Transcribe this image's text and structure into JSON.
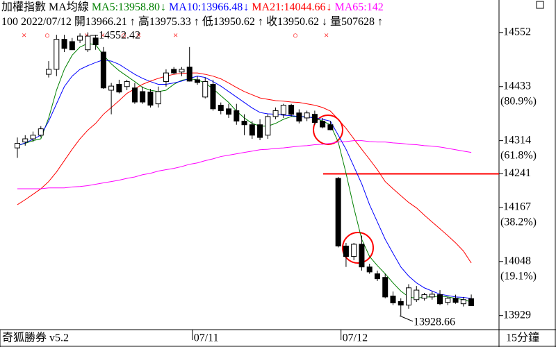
{
  "chart_data": {
    "type": "candlestick",
    "title": "加權指數",
    "indicator": "MA均線",
    "info": [
      "100",
      "2022/07/12",
      "開13966.21",
      "↑",
      "高13975.33",
      "↑",
      "低13950.62",
      "↑",
      "收13950.62",
      "↓",
      "量507628",
      "↑"
    ],
    "signals": [
      "×",
      "○",
      "×",
      "×",
      "○",
      "×",
      "×",
      "○",
      "×"
    ],
    "categories": [
      null,
      null,
      null,
      null,
      null,
      null,
      null,
      null,
      null,
      null,
      null,
      null,
      null,
      null,
      null,
      null,
      null,
      null,
      null,
      null,
      null,
      null,
      "07/11",
      null,
      null,
      null,
      null,
      null,
      null,
      null,
      null,
      null,
      null,
      null,
      null,
      null,
      null,
      null,
      null,
      null,
      null,
      "07/12",
      null,
      null,
      null,
      null,
      null,
      null,
      null,
      null,
      null,
      null,
      null,
      null,
      null,
      null,
      null,
      null,
      null
    ],
    "open": [
      14298,
      14311,
      14318,
      14326,
      14460,
      14471,
      14537,
      14532,
      14535,
      14514,
      14540,
      14509,
      14425,
      14438,
      14433,
      14430,
      14422,
      14421,
      14395,
      14444,
      14471,
      14465,
      14476,
      14448,
      14410,
      14438,
      14392,
      14384,
      14380,
      14357,
      14349,
      14349,
      14326,
      14367,
      14372,
      14392,
      14375,
      14364,
      14372,
      14357,
      14349,
      14231,
      14082,
      14059,
      14086,
      14036,
      14021,
      14013,
      13972,
      13960,
      13952,
      13964,
      13967,
      13970,
      13975,
      13958,
      13967,
      13955,
      13966.21
    ],
    "high": [
      14321,
      14326,
      14334,
      14346,
      14489,
      14547,
      14547,
      14540,
      14550,
      14552.42,
      14547,
      14520,
      14441,
      14448,
      14448,
      14441,
      14433,
      14428,
      14433,
      14471,
      14476,
      14476,
      14520,
      14456,
      14453,
      14448,
      14398,
      14395,
      14395,
      14372,
      14357,
      14361,
      14372,
      14387,
      14395,
      14395,
      14383,
      14380,
      14380,
      14364,
      14357,
      14234,
      14089,
      14089,
      14105,
      14043,
      14028,
      14021,
      13982,
      13967,
      13998,
      13994,
      13979,
      13982,
      13985,
      13970,
      13975,
      13970,
      13975.33
    ],
    "low": [
      14276,
      14303,
      14311,
      14321,
      14453,
      14456,
      14509,
      14514,
      14529,
      14509,
      14514,
      14428,
      14372,
      14418,
      14425,
      14395,
      14395,
      14387,
      14387,
      14433,
      14460,
      14456,
      14444,
      14437,
      14407,
      14380,
      14372,
      14364,
      14349,
      14326,
      14318,
      14315,
      14318,
      14361,
      14364,
      14367,
      14352,
      14357,
      14349,
      14341,
      14337,
      14079,
      14036,
      14051,
      14028,
      14021,
      14005,
      13967,
      13952,
      13928.66,
      13944,
      13959,
      13962,
      13964,
      13952,
      13952,
      13955,
      13949,
      13950.62
    ],
    "close": [
      14308,
      14318,
      14326,
      14340,
      14471,
      14537,
      14517,
      14514,
      14544,
      14544,
      14525,
      14430,
      14434,
      14421,
      14444,
      14399,
      14399,
      14392,
      14422,
      14463,
      14463,
      14471,
      14445,
      14442,
      14444,
      14384,
      14380,
      14372,
      14357,
      14349,
      14326,
      14321,
      14367,
      14380,
      14392,
      14372,
      14357,
      14375,
      14354,
      14344,
      14338,
      14082,
      14059,
      14086,
      14036,
      14025,
      14010,
      13970,
      13957,
      13952,
      13990,
      13985,
      13975,
      13976,
      13955,
      13967,
      13958,
      13964,
      13950.62
    ],
    "up_color": "#ffffff",
    "down_color": "#000000",
    "series": [
      {
        "name": "MA5:13958.80",
        "arrow": "↓",
        "color": "#008000",
        "values": [
          14303,
          14308,
          14314,
          14318,
          14364,
          14425,
          14471,
          14502,
          14520,
          14528,
          14525,
          14502,
          14483,
          14468,
          14456,
          14444,
          14431,
          14425,
          14422,
          14425,
          14438,
          14447,
          14450,
          14448,
          14441,
          14428,
          14413,
          14398,
          14379,
          14364,
          14352,
          14346,
          14346,
          14352,
          14361,
          14367,
          14367,
          14367,
          14364,
          14357,
          14349,
          14311,
          14242,
          14166,
          14097,
          14059,
          14039,
          14021,
          14001,
          13983,
          13970,
          13967,
          13970,
          13970,
          13972,
          13970,
          13967,
          13964,
          13958.8
        ]
      },
      {
        "name": "MA10:13966.48",
        "arrow": "↓",
        "color": "#0000ff",
        "values": [
          14303,
          14309,
          14317,
          14326,
          14357,
          14395,
          14433,
          14456,
          14471,
          14479,
          14486,
          14492,
          14489,
          14482,
          14471,
          14460,
          14451,
          14444,
          14438,
          14438,
          14441,
          14445,
          14451,
          14456,
          14453,
          14444,
          14434,
          14422,
          14410,
          14398,
          14386,
          14376,
          14373,
          14372,
          14370,
          14369,
          14367,
          14366,
          14364,
          14361,
          14357,
          14326,
          14295,
          14257,
          14219,
          14173,
          14135,
          14097,
          14066,
          14036,
          14016,
          14001,
          13990,
          13983,
          13976,
          13973,
          13970,
          13969,
          13966.48
        ]
      },
      {
        "name": "MA21:14044.66",
        "arrow": "↓",
        "color": "#ff0000",
        "values": [
          14173,
          14184,
          14196,
          14208,
          14224,
          14245,
          14270,
          14295,
          14318,
          14337,
          14352,
          14372,
          14387,
          14402,
          14418,
          14428,
          14438,
          14445,
          14451,
          14456,
          14460,
          14462,
          14463,
          14463,
          14460,
          14456,
          14450,
          14441,
          14431,
          14422,
          14415,
          14408,
          14405,
          14402,
          14401,
          14399,
          14398,
          14395,
          14392,
          14387,
          14379,
          14361,
          14341,
          14318,
          14295,
          14273,
          14250,
          14224,
          14208,
          14193,
          14178,
          14166,
          14150,
          14135,
          14120,
          14105,
          14089,
          14071,
          14044.66
        ]
      },
      {
        "name": "MA65:142",
        "color": "#ff00ff",
        "values": [
          14208,
          14208,
          14208,
          14208,
          14210,
          14210,
          14210,
          14212,
          14213,
          14215,
          14218,
          14221,
          14224,
          14227,
          14231,
          14234,
          14239,
          14242,
          14247,
          14250,
          14253,
          14257,
          14262,
          14265,
          14270,
          14274,
          14279,
          14282,
          14285,
          14288,
          14291,
          14294,
          14295,
          14297,
          14298,
          14300,
          14302,
          14303,
          14305,
          14306,
          14308,
          14311,
          14312,
          14314,
          14314,
          14312,
          14311,
          14311,
          14309,
          14308,
          14306,
          14305,
          14303,
          14302,
          14300,
          14297,
          14294,
          14291,
          14288
        ]
      }
    ],
    "annotations": [
      "14552.42",
      "13928.66"
    ],
    "ylim": [
      13898,
      14593
    ],
    "yticks": [
      14552,
      14433,
      14314,
      14241,
      14167,
      14048,
      13929
    ],
    "fib_labels": [
      {
        "value": 14433,
        "label": "(80.9%)"
      },
      {
        "value": 14314,
        "label": "(61.8%)"
      },
      {
        "value": 14167,
        "label": "(38.2%)"
      },
      {
        "value": 14048,
        "label": "(19.1%)"
      }
    ],
    "hline": {
      "value": 14241,
      "color": "#ff0000"
    },
    "footer": "奇狐勝券 v5.2",
    "period": "15分鐘"
  }
}
